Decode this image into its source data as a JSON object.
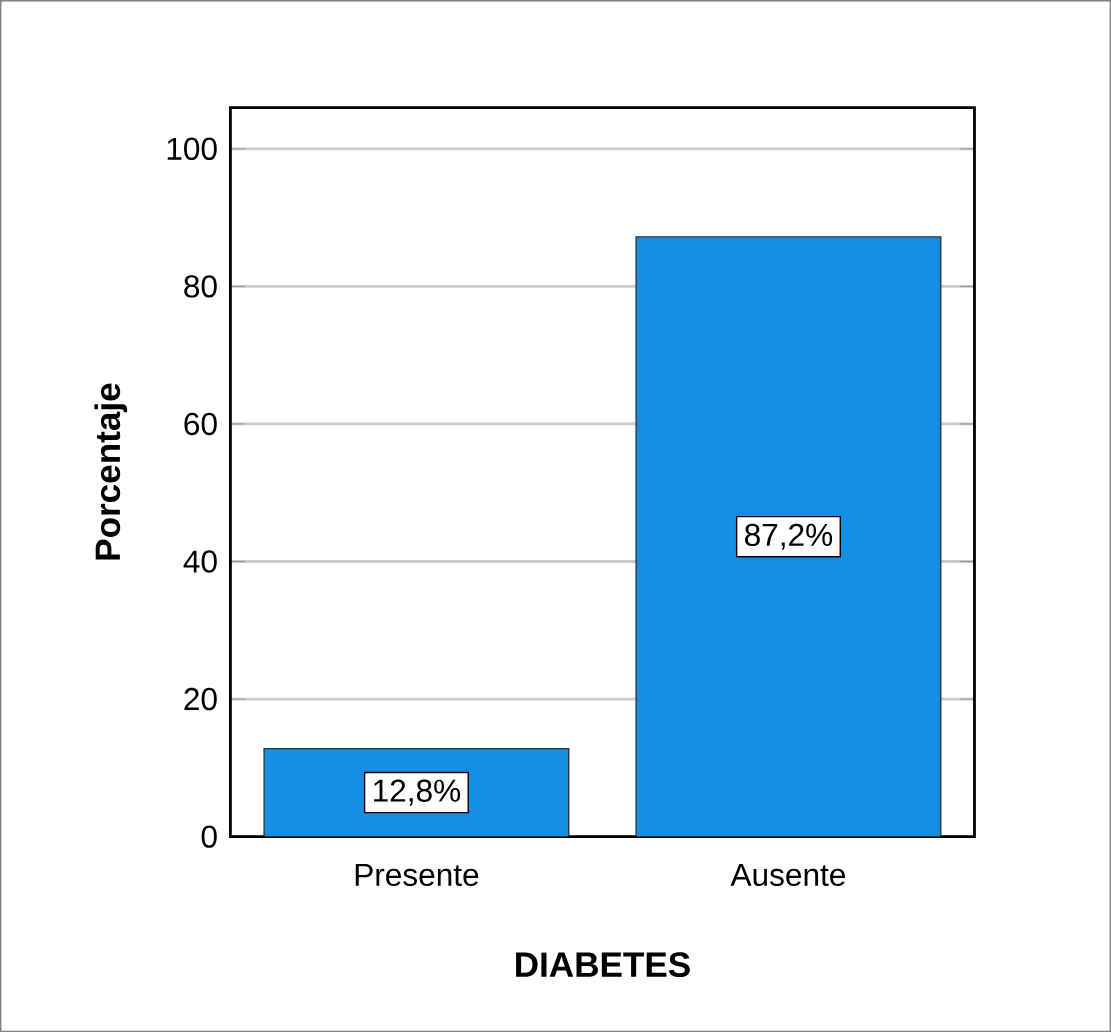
{
  "chart_data": {
    "type": "bar",
    "xlabel": "DIABETES",
    "ylabel": "Porcentaje",
    "categories": [
      "Presente",
      "Ausente"
    ],
    "values": [
      12.8,
      87.2
    ],
    "value_labels": [
      "12,8%",
      "87,2%"
    ],
    "color": "#1390e6",
    "ylim": [
      0,
      106
    ],
    "yticks": [
      0,
      20,
      40,
      60,
      80,
      100
    ],
    "grid": "y"
  }
}
